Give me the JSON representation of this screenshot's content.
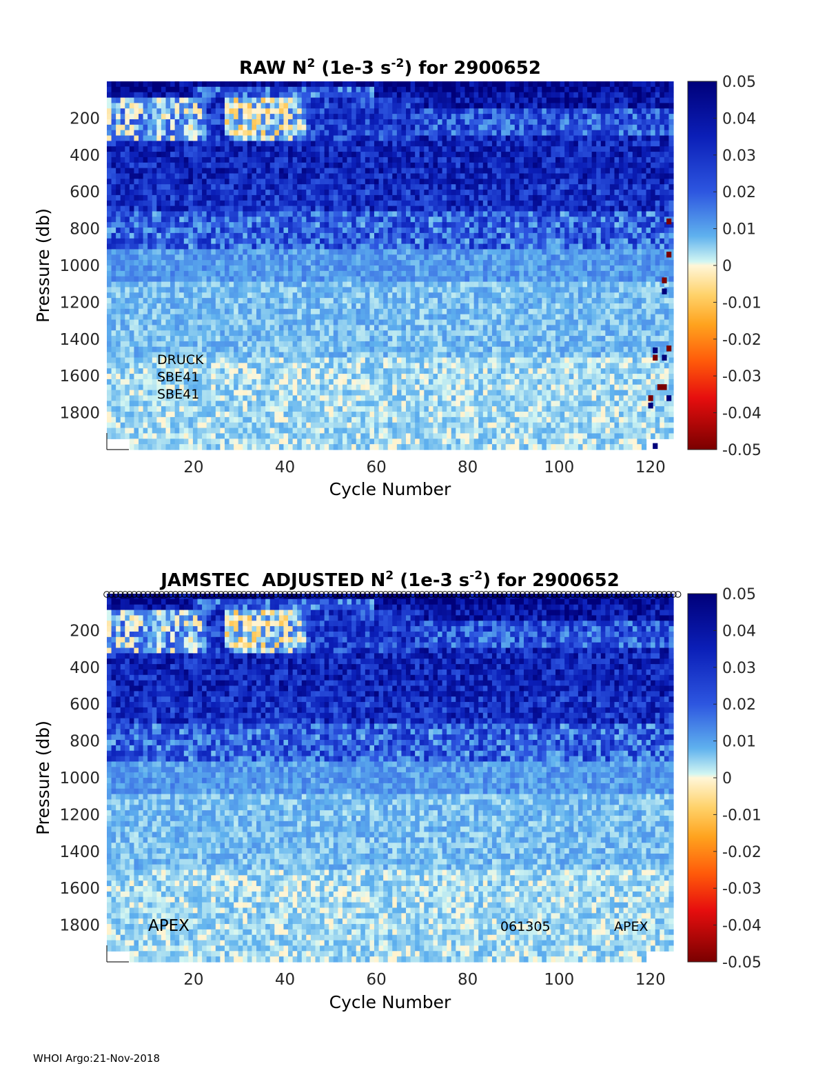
{
  "footer": "WHOI Argo:21-Nov-2018",
  "chart_data": [
    {
      "type": "heatmap",
      "title": "RAW N² (1e-3 s⁻²) for 2900652",
      "title_parts": {
        "pre": "RAW N",
        "sup1": "2",
        "mid": " (1e-3 s",
        "sup2": "-2",
        "post": ") for 2900652"
      },
      "xlabel": "Cycle Number",
      "ylabel": "Pressure (db)",
      "x_range": [
        1,
        125
      ],
      "y_range": [
        0,
        2000
      ],
      "y_reversed": true,
      "x_ticks": [
        20,
        40,
        60,
        80,
        100,
        120
      ],
      "y_ticks": [
        200,
        400,
        600,
        800,
        1000,
        1200,
        1400,
        1600,
        1800
      ],
      "colorbar": {
        "range": [
          -0.05,
          0.05
        ],
        "ticks": [
          "0.05",
          "0.04",
          "0.03",
          "0.02",
          "0.01",
          "0",
          "-0.01",
          "-0.02",
          "-0.03",
          "-0.04",
          "-0.05"
        ]
      },
      "annotations": [
        "DRUCK",
        "SBE41",
        "SBE41"
      ],
      "qc_markers": false,
      "anomalies": [
        {
          "cycle": 124,
          "pressure": 760,
          "value": -0.05
        },
        {
          "cycle": 124,
          "pressure": 940,
          "value": -0.05
        },
        {
          "cycle": 123,
          "pressure": 1080,
          "value": -0.05
        },
        {
          "cycle": 123,
          "pressure": 1140,
          "value": 0.05
        },
        {
          "cycle": 121,
          "pressure": 1460,
          "value": 0.05
        },
        {
          "cycle": 121,
          "pressure": 1500,
          "value": -0.05
        },
        {
          "cycle": 124,
          "pressure": 1450,
          "value": -0.05
        },
        {
          "cycle": 123,
          "pressure": 1500,
          "value": 0.05
        },
        {
          "cycle": 122,
          "pressure": 1660,
          "value": -0.05
        },
        {
          "cycle": 123,
          "pressure": 1660,
          "value": -0.05
        },
        {
          "cycle": 120,
          "pressure": 1720,
          "value": -0.05
        },
        {
          "cycle": 120,
          "pressure": 1760,
          "value": 0.05
        },
        {
          "cycle": 124,
          "pressure": 1720,
          "value": 0.05
        },
        {
          "cycle": 121,
          "pressure": 1980,
          "value": 0.05
        }
      ]
    },
    {
      "type": "heatmap",
      "title": "JAMSTEC ADJUSTED N² (1e-3 s⁻²) for 2900652",
      "title_parts": {
        "pre": "JAMSTEC  ADJUSTED N",
        "sup1": "2",
        "mid": " (1e-3 s",
        "sup2": "-2",
        "post": ") for 2900652"
      },
      "xlabel": "Cycle Number",
      "ylabel": "Pressure (db)",
      "x_range": [
        1,
        125
      ],
      "y_range": [
        0,
        2000
      ],
      "y_reversed": true,
      "x_ticks": [
        20,
        40,
        60,
        80,
        100,
        120
      ],
      "y_ticks": [
        200,
        400,
        600,
        800,
        1000,
        1200,
        1400,
        1600,
        1800
      ],
      "colorbar": {
        "range": [
          -0.05,
          0.05
        ],
        "ticks": [
          "0.05",
          "0.04",
          "0.03",
          "0.02",
          "0.01",
          "0",
          "-0.01",
          "-0.02",
          "-0.03",
          "-0.04",
          "-0.05"
        ]
      },
      "annotations": [
        "APEX",
        "061305",
        "APEX"
      ],
      "qc_markers": true,
      "anomalies": []
    }
  ]
}
